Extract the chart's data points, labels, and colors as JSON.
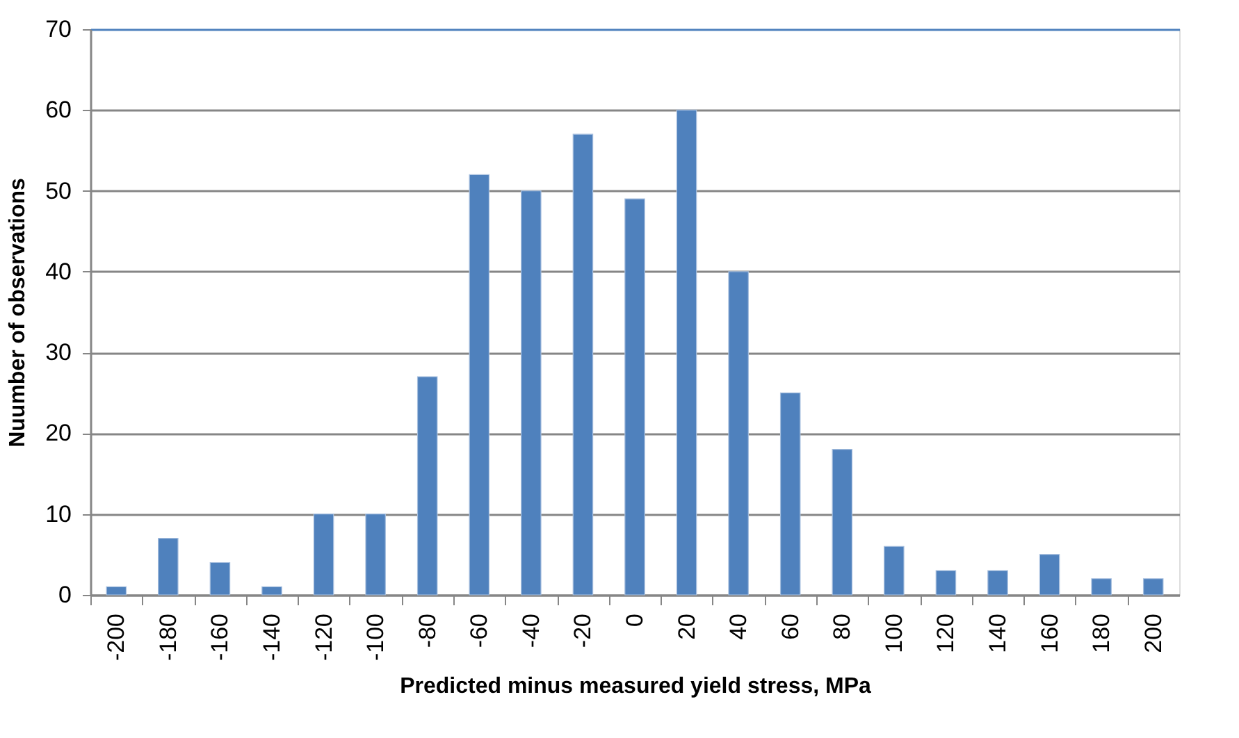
{
  "chart_data": {
    "type": "bar",
    "xlabel": "Predicted minus measured yield stress, MPa",
    "ylabel": "Nuumber of observations",
    "categories": [
      "-200",
      "-180",
      "-160",
      "-140",
      "-120",
      "-100",
      "-80",
      "-60",
      "-40",
      "-20",
      "0",
      "20",
      "40",
      "60",
      "80",
      "100",
      "120",
      "140",
      "160",
      "180",
      "200"
    ],
    "series": [
      {
        "color": "#4f81bd",
        "values": [
          1,
          7,
          4,
          1,
          10,
          10,
          27,
          52,
          50,
          57,
          49,
          60,
          40,
          25,
          18,
          6,
          3,
          3,
          5,
          2,
          2
        ]
      }
    ],
    "ylim": [
      0,
      70
    ],
    "yticks": [
      0,
      10,
      20,
      30,
      40,
      50,
      60,
      70
    ],
    "grid": "y"
  }
}
